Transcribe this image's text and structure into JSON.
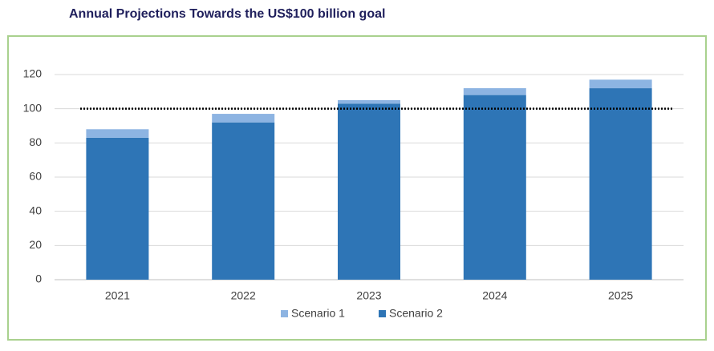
{
  "chart_data": {
    "type": "stacked_bar",
    "title": "Annual Projections Towards the US$100 billion goal",
    "categories": [
      "2021",
      "2022",
      "2023",
      "2024",
      "2025"
    ],
    "series": [
      {
        "name": "Scenario 1",
        "color": "#8db4e2",
        "values": [
          5,
          5,
          2,
          4,
          5
        ]
      },
      {
        "name": "Scenario 2",
        "color": "#2e75b6",
        "values": [
          83,
          92,
          103,
          108,
          112
        ]
      }
    ],
    "stack_order": [
      "Scenario 2",
      "Scenario 1"
    ],
    "reference_line": 100,
    "ylim": [
      0,
      120
    ],
    "yticks": [
      0,
      20,
      40,
      60,
      80,
      100,
      120
    ],
    "grid": true,
    "legend": "bottom"
  }
}
